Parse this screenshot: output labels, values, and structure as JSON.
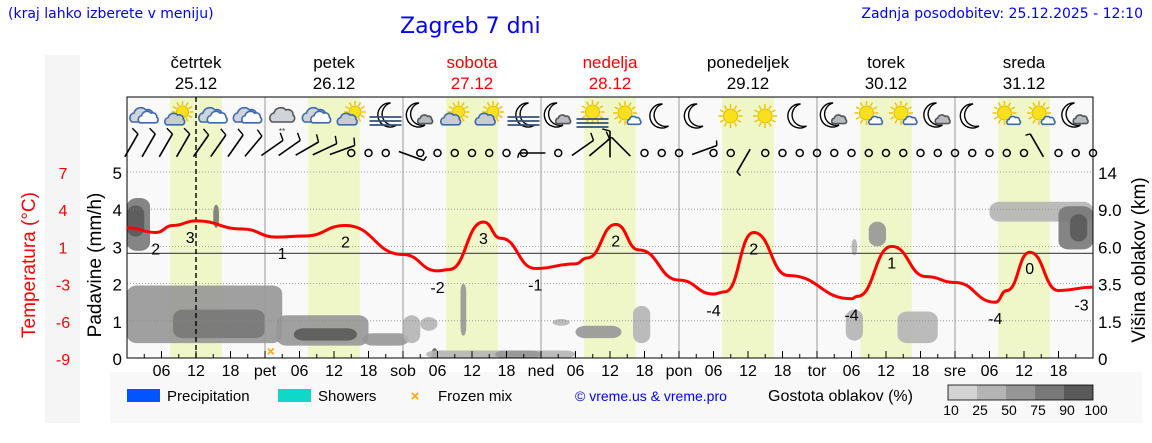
{
  "header": {
    "hint": "(kraj lahko izberete v meniju)",
    "title": "Zagreb 7 dni",
    "updated": "Zadnja posodobitev: 25.12.2025 - 12:10"
  },
  "days": [
    {
      "name": "četrtek",
      "date": "25.12",
      "weekend": false
    },
    {
      "name": "petek",
      "date": "26.12",
      "weekend": false
    },
    {
      "name": "sobota",
      "date": "27.12",
      "weekend": true
    },
    {
      "name": "nedelja",
      "date": "28.12",
      "weekend": true
    },
    {
      "name": "ponedeljek",
      "date": "29.12",
      "weekend": false
    },
    {
      "name": "torek",
      "date": "30.12",
      "weekend": false
    },
    {
      "name": "sreda",
      "date": "31.12",
      "weekend": false
    }
  ],
  "colors": {
    "weekday": "#000000",
    "weekend": "#ff0000",
    "temperature": "#ff0000",
    "daylight": "#eff7c8",
    "link": "#0000ff",
    "precipitation": "#0055ff",
    "showers": "#10d8c8",
    "frozen_mix": "#ffa500"
  },
  "icons": [
    "cloudy",
    "partly-sunny",
    "cloudy",
    "cloudy",
    "cloudy-light-snow",
    "cloudy",
    "partly-sunny",
    "moon-fog",
    "moon-cloud",
    "partly-sunny",
    "partly-sunny",
    "moon-fog",
    "moon-cloud",
    "sun-fog",
    "sun-small-cloud",
    "moon",
    "moon",
    "sunny",
    "sunny",
    "moon",
    "moon-cloud",
    "sun-small-cloud",
    "sun-small-cloud",
    "moon-cloud",
    "moon",
    "sun-small-cloud",
    "sun-small-cloud",
    "moon-cloud"
  ],
  "wind": [
    {
      "dir": 30,
      "kt": 10
    },
    {
      "dir": 30,
      "kt": 10
    },
    {
      "dir": 30,
      "kt": 10
    },
    {
      "dir": 30,
      "kt": 10
    },
    {
      "dir": 35,
      "kt": 10
    },
    {
      "dir": 35,
      "kt": 10
    },
    {
      "dir": 35,
      "kt": 10
    },
    {
      "dir": 40,
      "kt": 10
    },
    {
      "dir": 55,
      "kt": 10
    },
    {
      "dir": 55,
      "kt": 10
    },
    {
      "dir": 60,
      "kt": 10
    },
    {
      "dir": 65,
      "kt": 10
    },
    {
      "dir": 70,
      "kt": 10
    },
    {
      "dir": 0,
      "kt": 0
    },
    {
      "dir": 0,
      "kt": 0
    },
    {
      "dir": 0,
      "kt": 0
    },
    {
      "dir": 110,
      "kt": 5
    },
    {
      "dir": 0,
      "kt": 0
    },
    {
      "dir": 0,
      "kt": 0
    },
    {
      "dir": 0,
      "kt": 0
    },
    {
      "dir": 0,
      "kt": 0
    },
    {
      "dir": 0,
      "kt": 0
    },
    {
      "dir": 0,
      "kt": 0
    },
    {
      "dir": 0,
      "kt": 0
    },
    {
      "dir": 270,
      "kt": 5
    },
    {
      "dir": 0,
      "kt": 0
    },
    {
      "dir": 55,
      "kt": 10
    },
    {
      "dir": 50,
      "kt": 10
    },
    {
      "dir": 0,
      "kt": 10
    },
    {
      "dir": 315,
      "kt": 5
    },
    {
      "dir": 0,
      "kt": 0
    },
    {
      "dir": 0,
      "kt": 0
    },
    {
      "dir": 0,
      "kt": 0
    },
    {
      "dir": 70,
      "kt": 5
    },
    {
      "dir": 0,
      "kt": 0
    },
    {
      "dir": 0,
      "kt": 0
    },
    {
      "dir": 210,
      "kt": 5
    },
    {
      "dir": 0,
      "kt": 0
    },
    {
      "dir": 0,
      "kt": 0
    },
    {
      "dir": 0,
      "kt": 0
    },
    {
      "dir": 0,
      "kt": 0
    },
    {
      "dir": 0,
      "kt": 0
    },
    {
      "dir": 0,
      "kt": 0
    },
    {
      "dir": 0,
      "kt": 0
    },
    {
      "dir": 0,
      "kt": 0
    },
    {
      "dir": 0,
      "kt": 0
    },
    {
      "dir": 0,
      "kt": 0
    },
    {
      "dir": 0,
      "kt": 0
    },
    {
      "dir": 0,
      "kt": 0
    },
    {
      "dir": 0,
      "kt": 0
    },
    {
      "dir": 0,
      "kt": 0
    },
    {
      "dir": 0,
      "kt": 0
    },
    {
      "dir": 0,
      "kt": 0
    },
    {
      "dir": 330,
      "kt": 5
    },
    {
      "dir": 0,
      "kt": 0
    },
    {
      "dir": 0,
      "kt": 0
    },
    {
      "dir": 0,
      "kt": 0
    }
  ],
  "chart_data": {
    "type": "line",
    "left_axis_temperature": {
      "label": "Temperatura (°C)",
      "ticks": [
        "7",
        "4",
        "1",
        "-3",
        "-6",
        "-9"
      ],
      "range": [
        -9,
        7
      ]
    },
    "left_axis_precipitation": {
      "label": "Padavine (mm/h)",
      "ticks": [
        "5",
        "4",
        "3",
        "2",
        "1",
        "0"
      ],
      "range": [
        0,
        5
      ]
    },
    "right_axis_cloud_height": {
      "label": "Višina oblakov (km)",
      "ticks": [
        "14",
        "9.0",
        "6.0",
        "3.5",
        "1.5",
        "0"
      ]
    },
    "x_tick_labels": [
      "06",
      "12",
      "18",
      "pet",
      "06",
      "12",
      "18",
      "sob",
      "06",
      "12",
      "18",
      "ned",
      "06",
      "12",
      "18",
      "pon",
      "06",
      "12",
      "18",
      "tor",
      "06",
      "12",
      "18",
      "sre",
      "06",
      "12",
      "18"
    ],
    "grid": true,
    "daylight": [
      "07:30",
      "16:30"
    ],
    "now_marker": "25.12 12",
    "temperature": [
      {
        "t": "25.12 00",
        "v": 2.2
      },
      {
        "t": "25.12 05",
        "v": 1.8
      },
      {
        "t": "25.12 08",
        "v": 2.4
      },
      {
        "t": "25.12 12",
        "v": 2.8
      },
      {
        "t": "25.12 20",
        "v": 2.1
      },
      {
        "t": "26.12 02",
        "v": 1.4
      },
      {
        "t": "26.12 07",
        "v": 1.5
      },
      {
        "t": "26.12 14",
        "v": 2.4
      },
      {
        "t": "27.12 00",
        "v": -0.1
      },
      {
        "t": "27.12 06",
        "v": -1.5
      },
      {
        "t": "27.12 08",
        "v": -1.4
      },
      {
        "t": "27.12 14",
        "v": 2.7
      },
      {
        "t": "27.12 17",
        "v": 1.3
      },
      {
        "t": "27.12 23",
        "v": -1.3
      },
      {
        "t": "28.12 06",
        "v": -0.9
      },
      {
        "t": "28.12 08",
        "v": -0.4
      },
      {
        "t": "28.12 13",
        "v": 2.5
      },
      {
        "t": "28.12 17",
        "v": 0.3
      },
      {
        "t": "29.12 00",
        "v": -2.3
      },
      {
        "t": "29.12 06",
        "v": -3.5
      },
      {
        "t": "29.12 08",
        "v": -3.3
      },
      {
        "t": "29.12 13",
        "v": 1.8
      },
      {
        "t": "29.12 19",
        "v": -1.9
      },
      {
        "t": "30.12 06",
        "v": -3.9
      },
      {
        "t": "30.12 07",
        "v": -3.7
      },
      {
        "t": "30.12 13",
        "v": 0.6
      },
      {
        "t": "30.12 19",
        "v": -2.0
      },
      {
        "t": "31.12 00",
        "v": -2.5
      },
      {
        "t": "31.12 07",
        "v": -4.2
      },
      {
        "t": "31.12 09",
        "v": -3.2
      },
      {
        "t": "31.12 13",
        "v": 0.1
      },
      {
        "t": "31.12 18",
        "v": -3.2
      },
      {
        "t": "01.01 00",
        "v": -2.9
      }
    ],
    "temperature_labels": [
      {
        "t": "25.12 05",
        "text": "2",
        "v": 1.8
      },
      {
        "t": "25.12 11",
        "text": "3",
        "v": 2.8
      },
      {
        "t": "26.12 03",
        "text": "1",
        "v": 1.4
      },
      {
        "t": "26.12 14",
        "text": "2",
        "v": 2.4
      },
      {
        "t": "27.12 06",
        "text": "-2",
        "v": -1.5
      },
      {
        "t": "27.12 14",
        "text": "3",
        "v": 2.7
      },
      {
        "t": "27.12 23",
        "text": "-1",
        "v": -1.3
      },
      {
        "t": "28.12 13",
        "text": "2",
        "v": 2.5
      },
      {
        "t": "29.12 06",
        "text": "-4",
        "v": -3.5
      },
      {
        "t": "29.12 13",
        "text": "2",
        "v": 1.8
      },
      {
        "t": "30.12 06",
        "text": "-4",
        "v": -3.9
      },
      {
        "t": "30.12 13",
        "text": "1",
        "v": 0.6
      },
      {
        "t": "31.12 07",
        "text": "-4",
        "v": -4.2
      },
      {
        "t": "31.12 13",
        "text": "0",
        "v": 0.1
      },
      {
        "t": "31.12 22",
        "text": "-3",
        "v": -3.0
      }
    ],
    "cloud_density": [
      {
        "from": "25.12 00",
        "to": "25.12 04",
        "low": 5.7,
        "high": 10.5,
        "pct": 75
      },
      {
        "from": "25.12 00",
        "to": "25.12 03",
        "low": 6.8,
        "high": 9.5,
        "pct": 90
      },
      {
        "from": "25.12 15",
        "to": "25.12 16",
        "low": 7.5,
        "high": 9.6,
        "pct": 75
      },
      {
        "from": "25.12 00",
        "to": "26.12 03",
        "low": 0.6,
        "high": 3.4,
        "pct": 50
      },
      {
        "from": "25.12 08",
        "to": "26.12 00",
        "low": 0.8,
        "high": 2.1,
        "pct": 75
      },
      {
        "from": "26.12 02",
        "to": "26.12 18",
        "low": 0.5,
        "high": 1.8,
        "pct": 50
      },
      {
        "from": "26.12 05",
        "to": "26.12 16",
        "low": 0.7,
        "high": 1.2,
        "pct": 90
      },
      {
        "from": "26.12 17",
        "to": "27.12 01",
        "low": 0.5,
        "high": 1.0,
        "pct": 50
      },
      {
        "from": "27.12 00",
        "to": "27.12 03",
        "low": 0.6,
        "high": 1.8,
        "pct": 25
      },
      {
        "from": "27.12 03",
        "to": "27.12 06",
        "low": 1.1,
        "high": 1.7,
        "pct": 25
      },
      {
        "from": "27.12 05",
        "to": "27.12 06",
        "low": 0.0,
        "high": 0.4,
        "pct": 90
      },
      {
        "from": "27.12 10",
        "to": "27.12 11",
        "low": 0.9,
        "high": 3.5,
        "pct": 50
      },
      {
        "from": "27.12 04",
        "to": "28.12 06",
        "low": 0.0,
        "high": 0.3,
        "pct": 25
      },
      {
        "from": "27.12 16",
        "to": "28.12 00",
        "low": 0.0,
        "high": 0.3,
        "pct": 50
      },
      {
        "from": "28.12 02",
        "to": "28.12 05",
        "low": 1.3,
        "high": 1.6,
        "pct": 25
      },
      {
        "from": "28.12 06",
        "to": "28.12 14",
        "low": 0.8,
        "high": 1.3,
        "pct": 50
      },
      {
        "from": "28.12 16",
        "to": "28.12 19",
        "low": 0.6,
        "high": 2.3,
        "pct": 25
      },
      {
        "from": "30.12 05",
        "to": "30.12 08",
        "low": 0.7,
        "high": 2.1,
        "pct": 25
      },
      {
        "from": "30.12 06",
        "to": "30.12 07",
        "low": 5.4,
        "high": 6.6,
        "pct": 25
      },
      {
        "from": "30.12 09",
        "to": "30.12 12",
        "low": 6.0,
        "high": 8.0,
        "pct": 50
      },
      {
        "from": "30.12 14",
        "to": "30.12 21",
        "low": 0.6,
        "high": 2.0,
        "pct": 25
      },
      {
        "from": "31.12 06",
        "to": "01.01 00",
        "low": 8.0,
        "high": 10.0,
        "pct": 25
      },
      {
        "from": "31.12 18",
        "to": "01.01 00",
        "low": 5.8,
        "high": 9.4,
        "pct": 75
      },
      {
        "from": "31.12 20",
        "to": "31.12 23",
        "low": 6.4,
        "high": 8.6,
        "pct": 90
      }
    ],
    "frozen_mix": [
      {
        "t": "26.12 01"
      }
    ]
  },
  "legend": {
    "precipitation": "Precipitation",
    "showers": "Showers",
    "frozen_mix": "Frozen mix",
    "credit": "© vreme.us & vreme.pro",
    "density_title": "Gostota oblakov (%)",
    "density_levels": [
      "10",
      "25",
      "50",
      "75",
      "90",
      "100"
    ],
    "density_colors": [
      "#d3d3d3",
      "#b4b4b4",
      "#969696",
      "#787878",
      "#5a5a5a"
    ]
  }
}
